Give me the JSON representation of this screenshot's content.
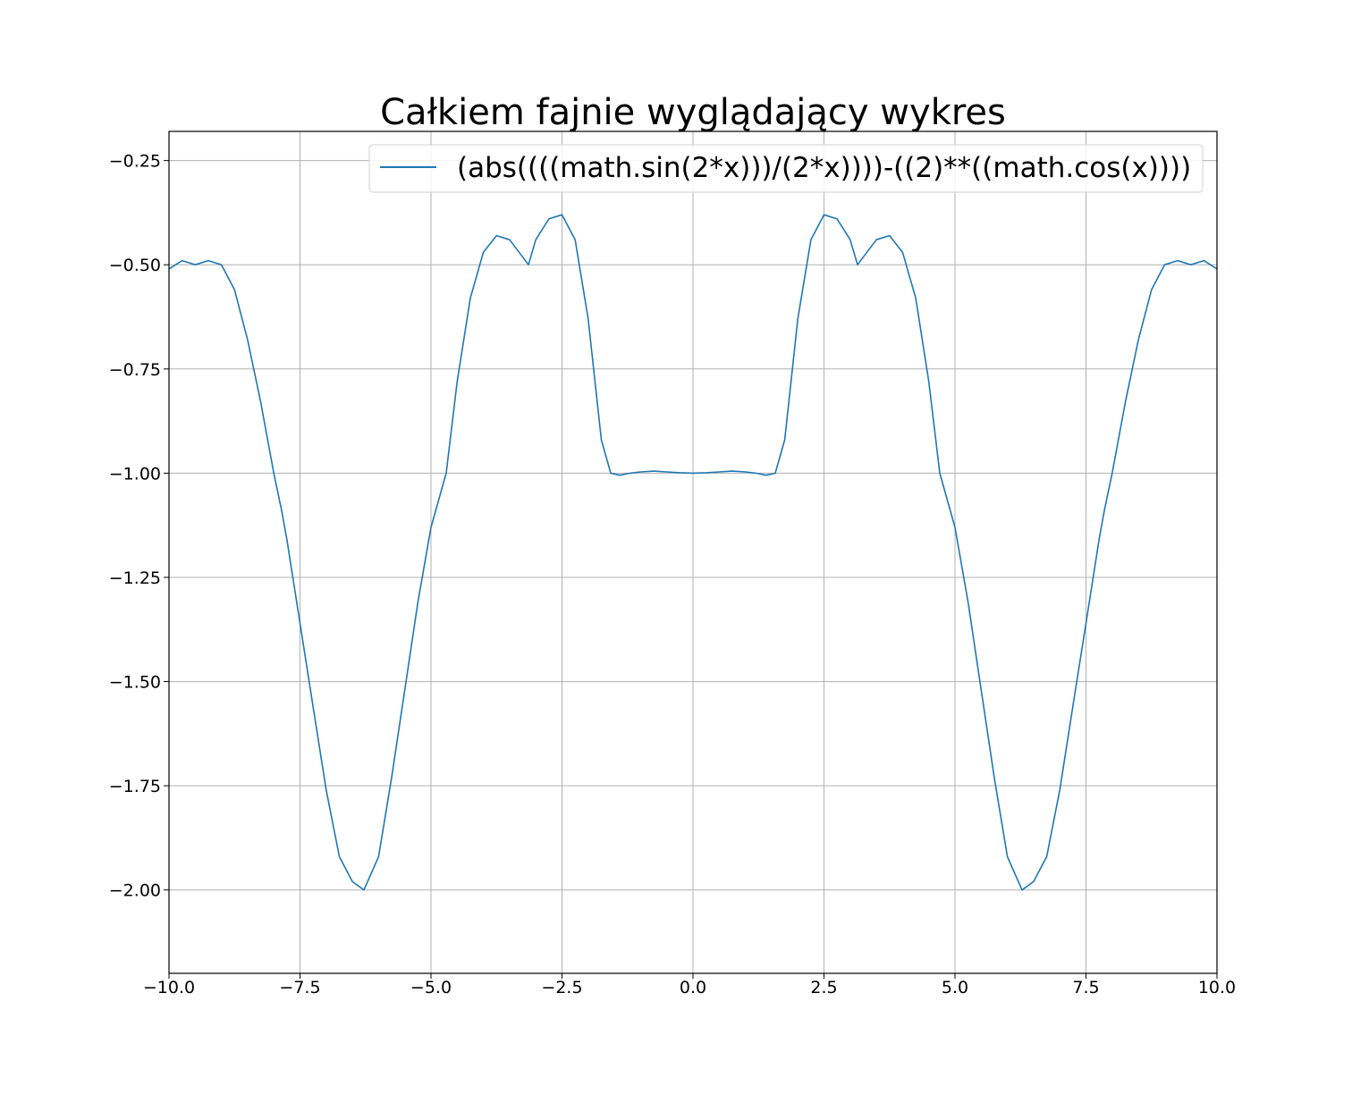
{
  "chart_data": {
    "type": "line",
    "title": "Całkiem fajnie wyglądający wykres",
    "xlabel": "",
    "ylabel": "",
    "xlim": [
      -10,
      10
    ],
    "ylim": [
      -2.2,
      -0.18
    ],
    "grid": true,
    "legend_placement": "upper right",
    "x_ticks": [
      -10,
      -7.5,
      -5,
      -2.5,
      0,
      2.5,
      5,
      7.5,
      10
    ],
    "x_tick_labels": [
      "−10.0",
      "−7.5",
      "−5.0",
      "−2.5",
      "0.0",
      "2.5",
      "5.0",
      "7.5",
      "10.0"
    ],
    "y_ticks": [
      -0.25,
      -0.5,
      -0.75,
      -1.0,
      -1.25,
      -1.5,
      -1.75,
      -2.0
    ],
    "y_tick_labels": [
      "−0.25",
      "−0.50",
      "−0.75",
      "−1.00",
      "−1.25",
      "−1.50",
      "−1.75",
      "−2.00"
    ],
    "series": [
      {
        "name": "(abs((((math.sin(2*x)))/(2*x))))-((2)**((math.cos(x))))",
        "color": "#1f77b4",
        "x": [
          -10,
          -9.75,
          -9.5,
          -9.25,
          -9,
          -8.75,
          -8.5,
          -8.25,
          -8,
          -7.85,
          -7.75,
          -7.5,
          -7.25,
          -7,
          -6.75,
          -6.5,
          -6.28,
          -6,
          -5.75,
          -5.5,
          -5.25,
          -5,
          -4.71,
          -4.5,
          -4.25,
          -4,
          -3.75,
          -3.5,
          -3.14,
          -3,
          -2.75,
          -2.5,
          -2.25,
          -2,
          -1.75,
          -1.57,
          -1.4,
          -1.2,
          -1,
          -0.75,
          -0.5,
          -0.25,
          0,
          0.25,
          0.5,
          0.75,
          1,
          1.2,
          1.4,
          1.57,
          1.75,
          2,
          2.25,
          2.5,
          2.75,
          3,
          3.14,
          3.5,
          3.75,
          4,
          4.25,
          4.5,
          4.71,
          5,
          5.25,
          5.5,
          5.75,
          6,
          6.28,
          6.5,
          6.75,
          7,
          7.25,
          7.5,
          7.75,
          7.85,
          8,
          8.25,
          8.5,
          8.75,
          9,
          9.25,
          9.5,
          9.75,
          10
        ],
        "y": [
          -0.51,
          -0.49,
          -0.5,
          -0.49,
          -0.5,
          -0.56,
          -0.68,
          -0.83,
          -1.0,
          -1.09,
          -1.16,
          -1.36,
          -1.56,
          -1.76,
          -1.92,
          -1.98,
          -2.0,
          -1.92,
          -1.73,
          -1.52,
          -1.31,
          -1.13,
          -1.0,
          -0.78,
          -0.58,
          -0.47,
          -0.43,
          -0.44,
          -0.5,
          -0.44,
          -0.39,
          -0.38,
          -0.44,
          -0.63,
          -0.92,
          -1.0,
          -1.005,
          -1.0,
          -0.997,
          -0.995,
          -0.997,
          -0.999,
          -1.0,
          -0.999,
          -0.997,
          -0.995,
          -0.997,
          -1.0,
          -1.005,
          -1.0,
          -0.92,
          -0.63,
          -0.44,
          -0.38,
          -0.39,
          -0.44,
          -0.5,
          -0.44,
          -0.43,
          -0.47,
          -0.58,
          -0.78,
          -1.0,
          -1.13,
          -1.31,
          -1.52,
          -1.73,
          -1.92,
          -2.0,
          -1.98,
          -1.92,
          -1.76,
          -1.56,
          -1.36,
          -1.16,
          -1.09,
          -1.0,
          -0.83,
          -0.68,
          -0.56,
          -0.5,
          -0.49,
          -0.5,
          -0.49,
          -0.51
        ]
      }
    ]
  }
}
